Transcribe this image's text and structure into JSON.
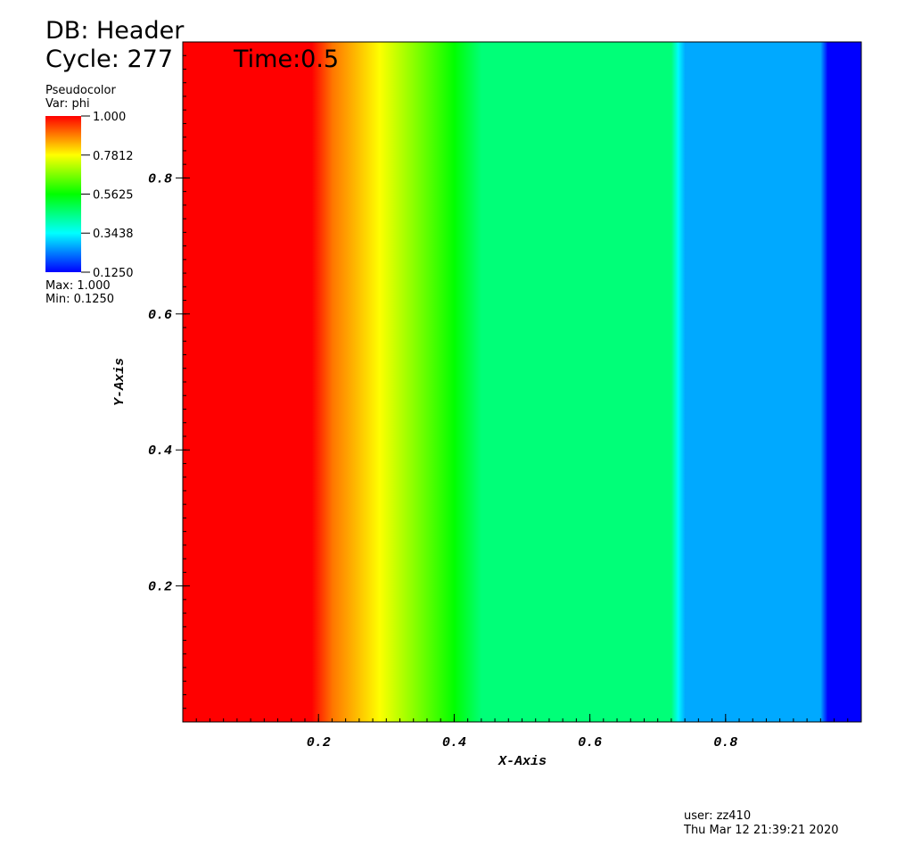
{
  "chart_data": {
    "type": "pseudocolor",
    "database": "DB: Header",
    "cycle": "Cycle: 277",
    "time": "Time:0.5",
    "plot_name": "Pseudocolor",
    "variable": "Var: phi",
    "max_label": "Max:  1.000",
    "min_label": "Min:  0.1250",
    "user": "user: zz410",
    "date": "Thu Mar 12 21:39:21 2020",
    "xlabel": "X-Axis",
    "ylabel": "Y-Axis",
    "xlim": [
      0,
      1
    ],
    "ylim": [
      0,
      1
    ],
    "xticks": [
      0.2,
      0.4,
      0.6,
      0.8
    ],
    "yticks": [
      0.2,
      0.4,
      0.6,
      0.8
    ],
    "x": [
      0,
      0.19,
      0.22,
      0.29,
      0.4,
      0.44,
      0.72,
      0.73,
      0.74,
      0.94,
      0.95,
      1
    ],
    "values": [
      1,
      1,
      0.9,
      0.78,
      0.5625,
      0.46,
      0.46,
      0.34,
      0.27,
      0.27,
      0.125,
      0.125
    ],
    "colorbar": {
      "ticks": [
        {
          "value": 1,
          "label": "1.000"
        },
        {
          "value": 0.7812,
          "label": "0.7812"
        },
        {
          "value": 0.5625,
          "label": "0.5625"
        },
        {
          "value": 0.3438,
          "label": "0.3438"
        },
        {
          "value": 0.125,
          "label": "0.1250"
        }
      ],
      "colors": [
        "#ff0000",
        "#ffff00",
        "#00ff00",
        "#00ffff",
        "#0000ff"
      ]
    }
  }
}
